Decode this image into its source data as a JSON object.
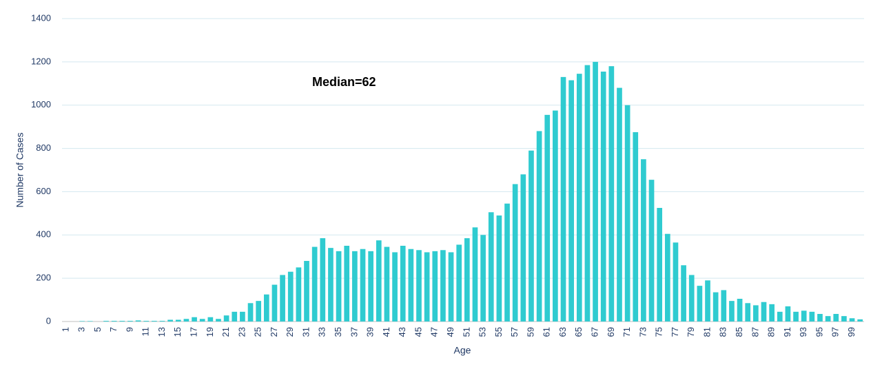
{
  "chart_data": {
    "type": "bar",
    "x_label": "Age",
    "y_label": "Number of Cases",
    "annotation": "Median=62",
    "categories": [
      "1",
      null,
      "3",
      null,
      "5",
      null,
      "7",
      null,
      "9",
      null,
      "11",
      null,
      "13",
      null,
      "15",
      null,
      "17",
      null,
      "19",
      null,
      "21",
      null,
      "23",
      null,
      "25",
      null,
      "27",
      null,
      "29",
      null,
      "31",
      null,
      "33",
      null,
      "35",
      null,
      "37",
      null,
      "39",
      null,
      "41",
      null,
      "43",
      null,
      "45",
      null,
      "47",
      null,
      "49",
      null,
      "51",
      null,
      "53",
      null,
      "55",
      null,
      "57",
      null,
      "59",
      null,
      "61",
      null,
      "63",
      null,
      "65",
      null,
      "67",
      null,
      "69",
      null,
      "71",
      null,
      "73",
      null,
      "75",
      null,
      "77",
      null,
      "79",
      null,
      "81",
      null,
      "83",
      null,
      "85",
      null,
      "87",
      null,
      "89",
      null,
      "91",
      null,
      "93",
      null,
      "95",
      null,
      "97",
      null,
      "99",
      null
    ],
    "values": [
      0,
      0,
      2,
      2,
      0,
      3,
      3,
      3,
      3,
      5,
      3,
      3,
      3,
      8,
      8,
      12,
      20,
      12,
      20,
      12,
      28,
      45,
      45,
      85,
      95,
      125,
      170,
      215,
      230,
      250,
      280,
      345,
      385,
      340,
      325,
      350,
      325,
      335,
      325,
      375,
      345,
      320,
      350,
      335,
      330,
      320,
      325,
      330,
      320,
      355,
      385,
      435,
      400,
      505,
      490,
      545,
      635,
      680,
      790,
      880,
      955,
      975,
      1130,
      1115,
      1145,
      1185,
      1200,
      1155,
      1180,
      1080,
      1000,
      875,
      750,
      655,
      525,
      405,
      365,
      260,
      215,
      165,
      190,
      135,
      145,
      95,
      105,
      85,
      75,
      90,
      80,
      45,
      70,
      45,
      50,
      45,
      35,
      25,
      35,
      25,
      15,
      10
    ],
    "color": "#2fcbd0",
    "ylim": [
      0,
      1400
    ],
    "yticks": [
      0,
      200,
      400,
      600,
      800,
      1000,
      1200,
      1400
    ],
    "grid": true
  }
}
